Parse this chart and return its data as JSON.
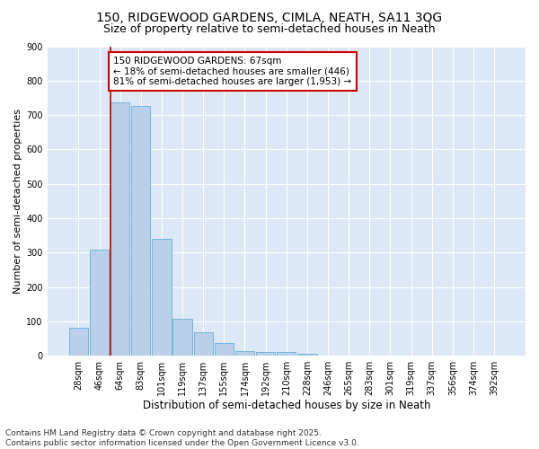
{
  "title1": "150, RIDGEWOOD GARDENS, CIMLA, NEATH, SA11 3QG",
  "title2": "Size of property relative to semi-detached houses in Neath",
  "xlabel": "Distribution of semi-detached houses by size in Neath",
  "ylabel": "Number of semi-detached properties",
  "categories": [
    "28sqm",
    "46sqm",
    "64sqm",
    "83sqm",
    "101sqm",
    "119sqm",
    "137sqm",
    "155sqm",
    "174sqm",
    "192sqm",
    "210sqm",
    "228sqm",
    "246sqm",
    "265sqm",
    "283sqm",
    "301sqm",
    "319sqm",
    "337sqm",
    "356sqm",
    "374sqm",
    "392sqm"
  ],
  "values": [
    82,
    308,
    738,
    726,
    341,
    107,
    68,
    37,
    13,
    10,
    10,
    5,
    0,
    0,
    0,
    0,
    0,
    0,
    0,
    0,
    0
  ],
  "bar_color": "#b8d0ea",
  "bar_edge_color": "#6aaed6",
  "subject_bar_index": 2,
  "subject_line_color": "#cc0000",
  "annotation_text": "150 RIDGEWOOD GARDENS: 67sqm\n← 18% of semi-detached houses are smaller (446)\n81% of semi-detached houses are larger (1,953) →",
  "annotation_box_color": "#ffffff",
  "annotation_box_edge": "#cc0000",
  "ylim": [
    0,
    900
  ],
  "yticks": [
    0,
    100,
    200,
    300,
    400,
    500,
    600,
    700,
    800,
    900
  ],
  "background_color": "#dce8f5",
  "footer_text": "Contains HM Land Registry data © Crown copyright and database right 2025.\nContains public sector information licensed under the Open Government Licence v3.0.",
  "title_fontsize": 10,
  "subtitle_fontsize": 9,
  "xlabel_fontsize": 8.5,
  "ylabel_fontsize": 8,
  "tick_fontsize": 7,
  "annotation_fontsize": 7.5,
  "footer_fontsize": 6.5
}
